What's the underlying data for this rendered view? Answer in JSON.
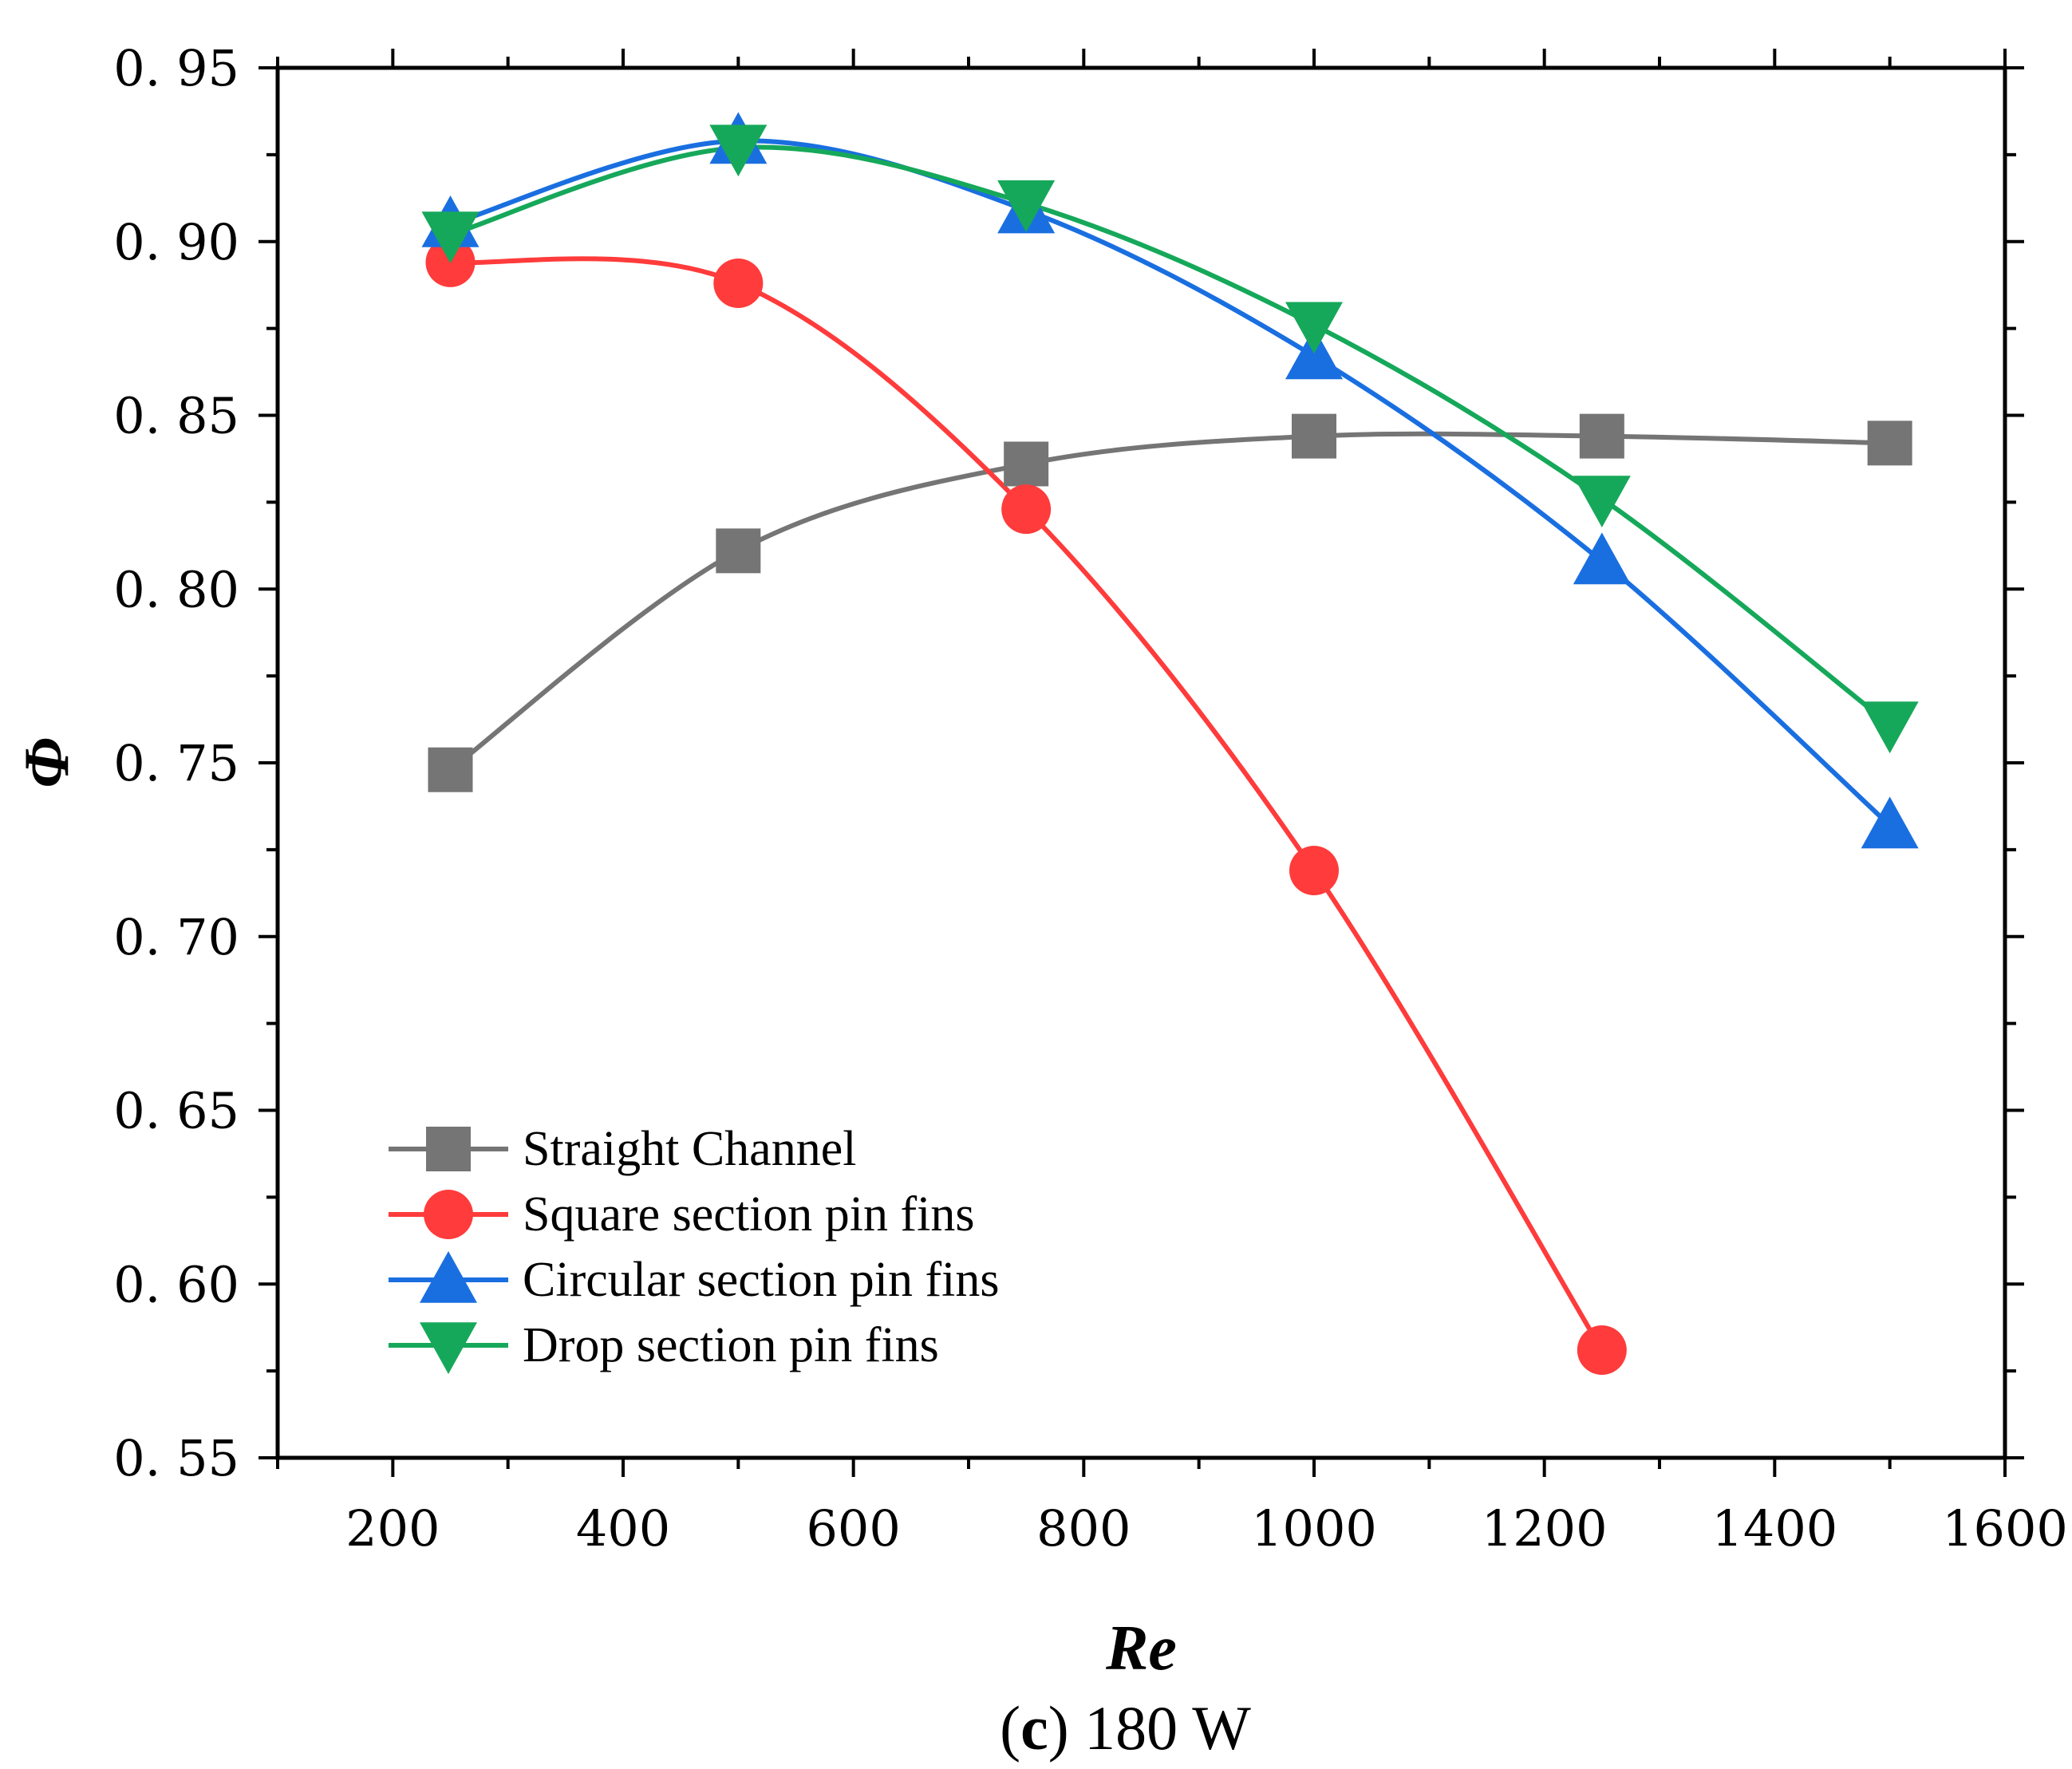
{
  "chart_data": {
    "type": "line",
    "title": "",
    "caption_bold": "c",
    "caption": "(c) 180 W",
    "xlabel": "Re",
    "ylabel": "Φ",
    "xlim": [
      100,
      1600
    ],
    "ylim": [
      0.55,
      0.95
    ],
    "xticks": [
      200,
      400,
      600,
      800,
      1000,
      1200,
      1400,
      1600
    ],
    "yticks": [
      0.55,
      0.6,
      0.65,
      0.7,
      0.75,
      0.8,
      0.85,
      0.9,
      0.95
    ],
    "xtick_labels": [
      "200",
      "400",
      "600",
      "800",
      "1000",
      "1200",
      "1400",
      "1600"
    ],
    "ytick_labels": [
      "0. 55",
      "0. 60",
      "0. 65",
      "0. 70",
      "0. 75",
      "0. 80",
      "0. 85",
      "0. 90",
      "0. 95"
    ],
    "legend_position": "bottom-left",
    "grid": false,
    "series": [
      {
        "name": "Straight Channel",
        "color": "#757575",
        "marker": "square",
        "x": [
          250,
          500,
          750,
          1000,
          1250,
          1500
        ],
        "values": [
          0.748,
          0.811,
          0.836,
          0.844,
          0.844,
          0.842
        ]
      },
      {
        "name": "Square section pin fins",
        "color": "#ff3b3b",
        "marker": "circle",
        "x": [
          250,
          500,
          750,
          1000,
          1250
        ],
        "values": [
          0.894,
          0.888,
          0.823,
          0.719,
          0.581
        ]
      },
      {
        "name": "Circular section pin fins",
        "color": "#1a6fe0",
        "marker": "triangle-up",
        "x": [
          250,
          500,
          750,
          1000,
          1250,
          1500
        ],
        "values": [
          0.905,
          0.929,
          0.909,
          0.867,
          0.808,
          0.732
        ]
      },
      {
        "name": "Drop section pin fins",
        "color": "#16a85a",
        "marker": "triangle-down",
        "x": [
          250,
          500,
          750,
          1000,
          1250,
          1500
        ],
        "values": [
          0.902,
          0.927,
          0.911,
          0.876,
          0.826,
          0.761
        ]
      }
    ]
  }
}
